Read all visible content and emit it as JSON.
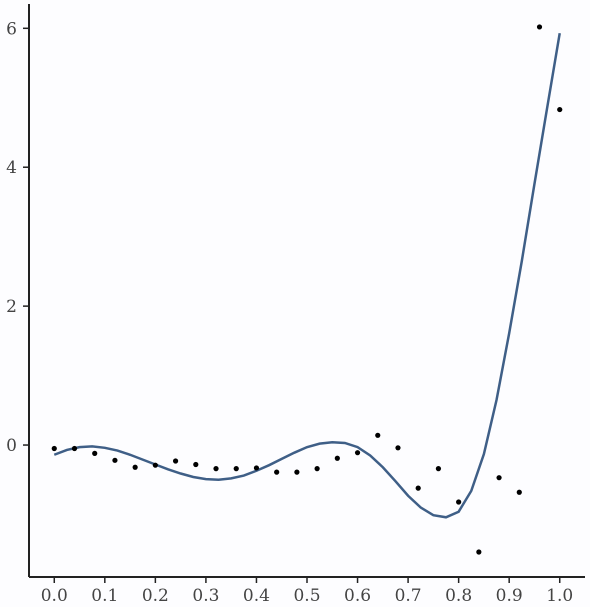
{
  "chart_data": {
    "type": "scatter",
    "title": "",
    "xlabel": "",
    "ylabel": "",
    "xlim": [
      -0.05,
      1.05
    ],
    "ylim": [
      -1.9,
      6.35
    ],
    "x_ticks": [
      0.0,
      0.1,
      0.2,
      0.3,
      0.4,
      0.5,
      0.6,
      0.7,
      0.8,
      0.9,
      1.0
    ],
    "x_tick_labels": [
      "0.0",
      "0.1",
      "0.2",
      "0.3",
      "0.4",
      "0.5",
      "0.6",
      "0.7",
      "0.8",
      "0.9",
      "1.0"
    ],
    "y_ticks": [
      0,
      2,
      4,
      6
    ],
    "y_tick_labels": [
      "0",
      "2",
      "4",
      "6"
    ],
    "grid": false,
    "legend": "none",
    "colors": {
      "line": "#3f5f87",
      "points": "#000000",
      "axes": "#222222",
      "background": "#fdfdff"
    },
    "series": [
      {
        "type": "scatter",
        "x": [
          0.0,
          0.04,
          0.08,
          0.12,
          0.16,
          0.2,
          0.24,
          0.28,
          0.32,
          0.36,
          0.4,
          0.44,
          0.48,
          0.52,
          0.56,
          0.6,
          0.64,
          0.68,
          0.72,
          0.76,
          0.8,
          0.84,
          0.88,
          0.92,
          0.96,
          1.0
        ],
        "y": [
          -0.05,
          -0.05,
          -0.12,
          -0.22,
          -0.32,
          -0.29,
          -0.23,
          -0.28,
          -0.34,
          -0.34,
          -0.33,
          -0.39,
          -0.39,
          -0.34,
          -0.19,
          -0.11,
          0.14,
          -0.04,
          -0.62,
          -0.34,
          -0.82,
          -1.54,
          -0.47,
          -0.68,
          6.02,
          4.83
        ]
      },
      {
        "type": "line",
        "x": [
          0.0,
          0.025,
          0.05,
          0.075,
          0.1,
          0.125,
          0.15,
          0.175,
          0.2,
          0.225,
          0.25,
          0.275,
          0.3,
          0.325,
          0.35,
          0.375,
          0.4,
          0.425,
          0.45,
          0.475,
          0.5,
          0.525,
          0.55,
          0.575,
          0.6,
          0.625,
          0.65,
          0.675,
          0.7,
          0.725,
          0.75,
          0.775,
          0.8,
          0.825,
          0.85,
          0.875,
          0.9,
          0.925,
          0.95,
          0.975,
          1.0
        ],
        "y": [
          -0.14,
          -0.07,
          -0.03,
          -0.02,
          -0.04,
          -0.08,
          -0.14,
          -0.21,
          -0.28,
          -0.35,
          -0.41,
          -0.46,
          -0.49,
          -0.5,
          -0.48,
          -0.44,
          -0.37,
          -0.29,
          -0.2,
          -0.11,
          -0.03,
          0.02,
          0.04,
          0.03,
          -0.03,
          -0.15,
          -0.32,
          -0.52,
          -0.73,
          -0.9,
          -1.01,
          -1.04,
          -0.96,
          -0.66,
          -0.13,
          0.65,
          1.61,
          2.65,
          3.76,
          4.85,
          5.93
        ]
      }
    ]
  }
}
